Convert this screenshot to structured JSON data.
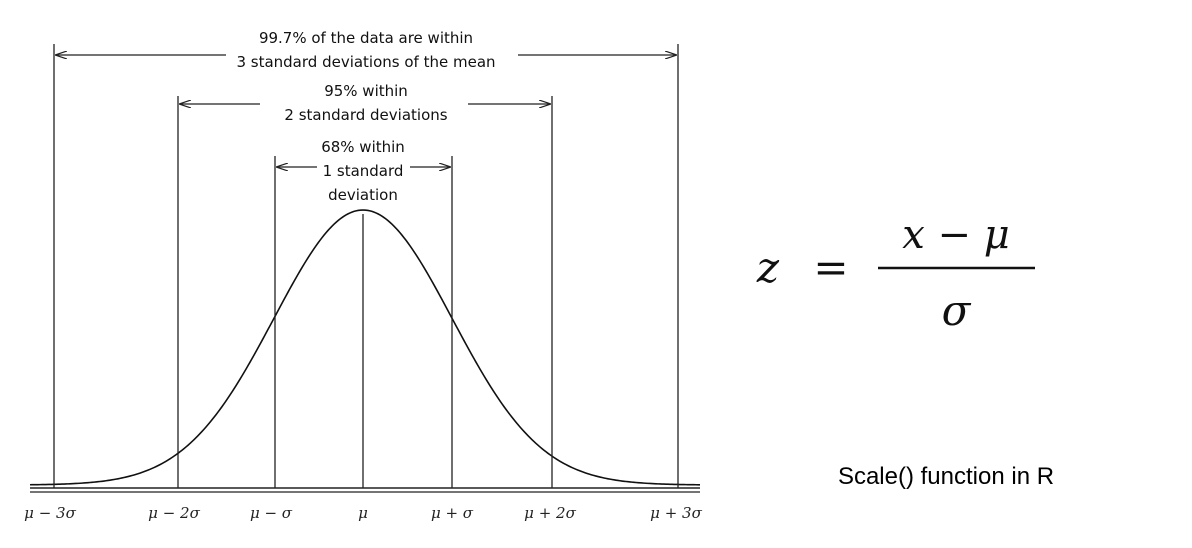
{
  "diagram": {
    "annotations": {
      "outer_line1": "99.7% of the data are within",
      "outer_line2": "3 standard deviations of the mean",
      "middle_line1": "95% within",
      "middle_line2": "2 standard deviations",
      "inner_line1": "68% within",
      "inner_line2": "1 standard",
      "inner_line3": "deviation"
    },
    "tick_labels": [
      "μ − 3σ",
      "μ − 2σ",
      "μ − σ",
      "μ",
      "μ + σ",
      "μ + 2σ",
      "μ + 3σ"
    ]
  },
  "formula": {
    "lhs": "z",
    "equals": "=",
    "numerator": "x − μ",
    "denominator": "σ"
  },
  "caption": "Scale() function in R"
}
